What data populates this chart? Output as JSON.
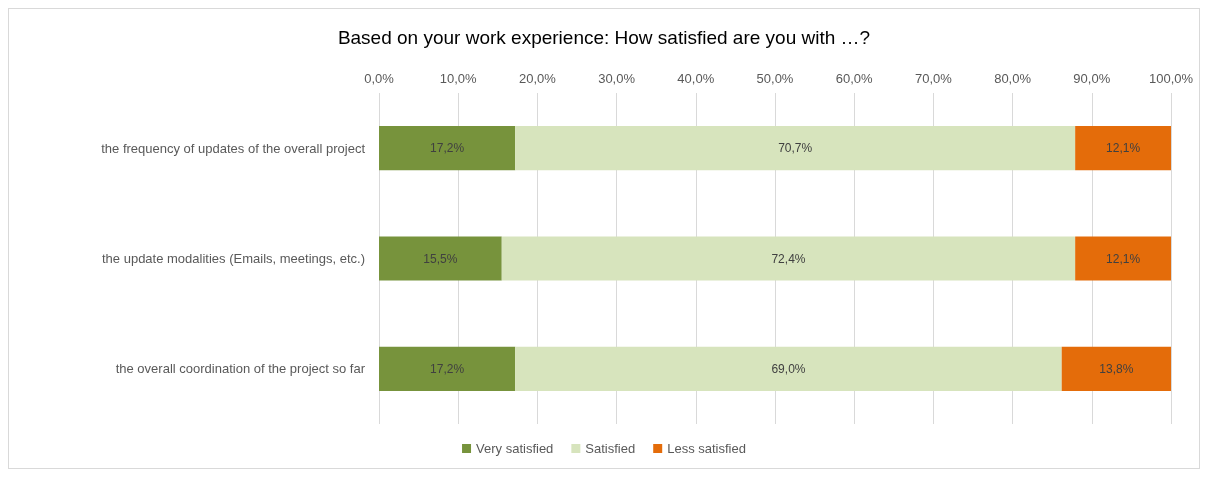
{
  "chart_data": {
    "type": "bar",
    "orientation": "horizontal",
    "stacked": true,
    "title": "Based on your work experience: How satisfied are you with …?",
    "categories": [
      "the frequency of updates of the overall project",
      "the update modalities (Emails, meetings, etc.)",
      "the overall coordination of the project so far"
    ],
    "series": [
      {
        "name": "Very satisfied",
        "color": "#77933c",
        "values": [
          17.2,
          15.5,
          17.2
        ],
        "value_labels": [
          "17,2%",
          "15,5%",
          "17,2%"
        ]
      },
      {
        "name": "Satisfied",
        "color": "#d7e4bd",
        "values": [
          70.7,
          72.4,
          69.0
        ],
        "value_labels": [
          "70,7%",
          "72,4%",
          "69,0%"
        ]
      },
      {
        "name": "Less satisfied",
        "color": "#e46c0a",
        "values": [
          12.1,
          12.1,
          13.8
        ],
        "value_labels": [
          "12,1%",
          "12,1%",
          "13,8%"
        ]
      }
    ],
    "xlim": [
      0,
      100
    ],
    "xticks": [
      {
        "value": 0,
        "label": "0,0%"
      },
      {
        "value": 10,
        "label": "10,0%"
      },
      {
        "value": 20,
        "label": "20,0%"
      },
      {
        "value": 30,
        "label": "30,0%"
      },
      {
        "value": 40,
        "label": "40,0%"
      },
      {
        "value": 50,
        "label": "50,0%"
      },
      {
        "value": 60,
        "label": "60,0%"
      },
      {
        "value": 70,
        "label": "70,0%"
      },
      {
        "value": 80,
        "label": "80,0%"
      },
      {
        "value": 90,
        "label": "90,0%"
      },
      {
        "value": 100,
        "label": "100,0%"
      }
    ],
    "grid": "x",
    "legend": "bottom"
  }
}
